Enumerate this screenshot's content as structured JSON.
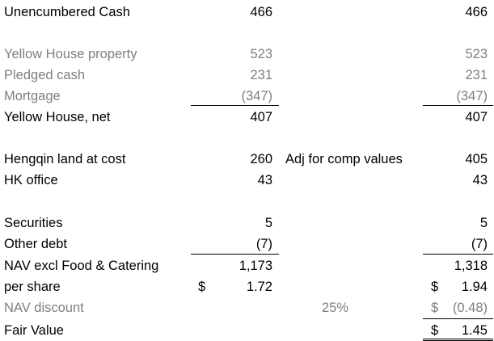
{
  "rows": [
    {
      "key": "unencumbered_cash",
      "label": "Unencumbered Cash",
      "value1": "466",
      "value2": "466"
    },
    {
      "key": "yellow_house_property",
      "label": "Yellow House property",
      "value1": "523",
      "value2": "523"
    },
    {
      "key": "pledged_cash",
      "label": "Pledged cash",
      "value1": "231",
      "value2": "231"
    },
    {
      "key": "mortgage",
      "label": "Mortgage",
      "value1": "(347)",
      "value2": "(347)"
    },
    {
      "key": "yellow_house_net",
      "label": "Yellow House, net",
      "value1": "407",
      "value2": "407"
    },
    {
      "key": "hengqin_land",
      "label": "Hengqin land at cost",
      "value1": "260",
      "note": "Adj for comp values",
      "value2": "405"
    },
    {
      "key": "hk_office",
      "label": "HK office",
      "value1": "43",
      "value2": "43"
    },
    {
      "key": "securities",
      "label": "Securities",
      "value1": "5",
      "value2": "5"
    },
    {
      "key": "other_debt",
      "label": "Other debt",
      "value1": "(7)",
      "value2": "(7)"
    },
    {
      "key": "nav_excl",
      "label": "NAV excl Food & Catering",
      "value1": "1,173",
      "value2": "1,318"
    },
    {
      "key": "per_share",
      "label": "per share",
      "dollar1": "$",
      "value1": "1.72",
      "dollar2": "$",
      "value2": "1.94"
    },
    {
      "key": "nav_discount",
      "label": "NAV discount",
      "pct": "25%",
      "dollar2": "$",
      "value2": "(0.48)"
    },
    {
      "key": "fair_value",
      "label": "Fair Value",
      "dollar2": "$",
      "value2": "1.45"
    }
  ],
  "colors": {
    "text": "#000000",
    "muted": "#7f7f7f",
    "rule": "#000000",
    "background": "#ffffff"
  }
}
